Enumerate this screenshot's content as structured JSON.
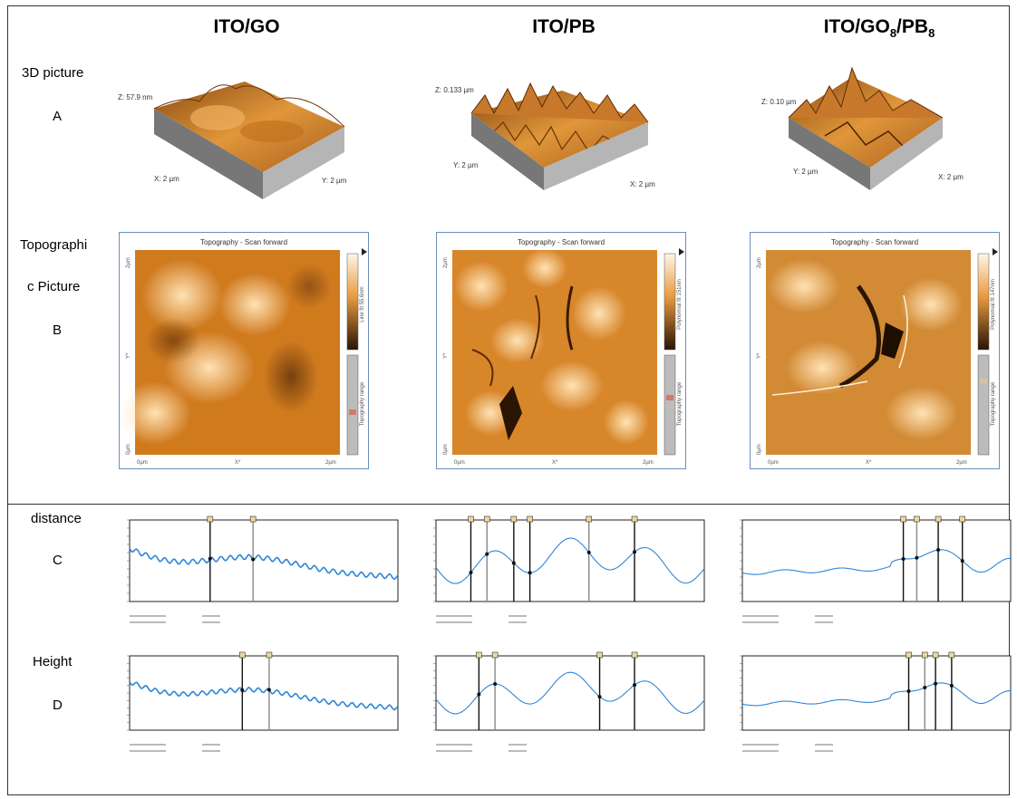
{
  "columns": [
    {
      "title_main": "ITO/GO",
      "title_sub": [],
      "z_label": "Z: 57.9 nm",
      "x_label": "X: 2 µm",
      "y_label": "Y: 2 µm",
      "panel_title": "Topography - Scan forward",
      "scale_label": "Line fit 55.6nm",
      "range_label": "Topography range",
      "axis_top": "2µm",
      "axis_mid": "Y*",
      "axis_bot": "0µm",
      "xaxis_left": "0µm",
      "xaxis_mid": "X*",
      "xaxis_right": "2µm"
    },
    {
      "title_main": "ITO/PB",
      "title_sub": [],
      "z_label": "Z: 0.133 µm",
      "x_label": "X: 2 µm",
      "y_label": "Y: 2 µm",
      "panel_title": "Topography - Scan forward",
      "scale_label": "Polynomial fit 151nm",
      "range_label": "Topography range",
      "axis_top": "2µm",
      "axis_mid": "Y*",
      "axis_bot": "0µm",
      "xaxis_left": "0µm",
      "xaxis_mid": "X*",
      "xaxis_right": "2µm"
    },
    {
      "title_main": "ITO/GO",
      "title_sub": [
        "8",
        "/PB",
        "8"
      ],
      "z_label": "Z: 0.10 µm",
      "x_label": "X: 2 µm",
      "y_label": "Y: 2 µm",
      "panel_title": "Topography - Scan forward",
      "scale_label": "Polynomial fit 147nm",
      "range_label": "Topography range",
      "axis_top": "2µm",
      "axis_mid": "Y*",
      "axis_bot": "0µm",
      "xaxis_left": "0µm",
      "xaxis_mid": "X*",
      "xaxis_right": "2µm"
    }
  ],
  "rows": {
    "a_label": "3D picture",
    "a_letter": "A",
    "b_label_1": "Topographi",
    "b_label_2": "c Picture",
    "b_letter": "B",
    "c_label": "distance",
    "c_letter": "C",
    "d_label": "Height",
    "d_letter": "D"
  },
  "colors": {
    "line": "#2e86d8",
    "orange": "#d88a2a",
    "panel_border": "#6c8fb8"
  }
}
